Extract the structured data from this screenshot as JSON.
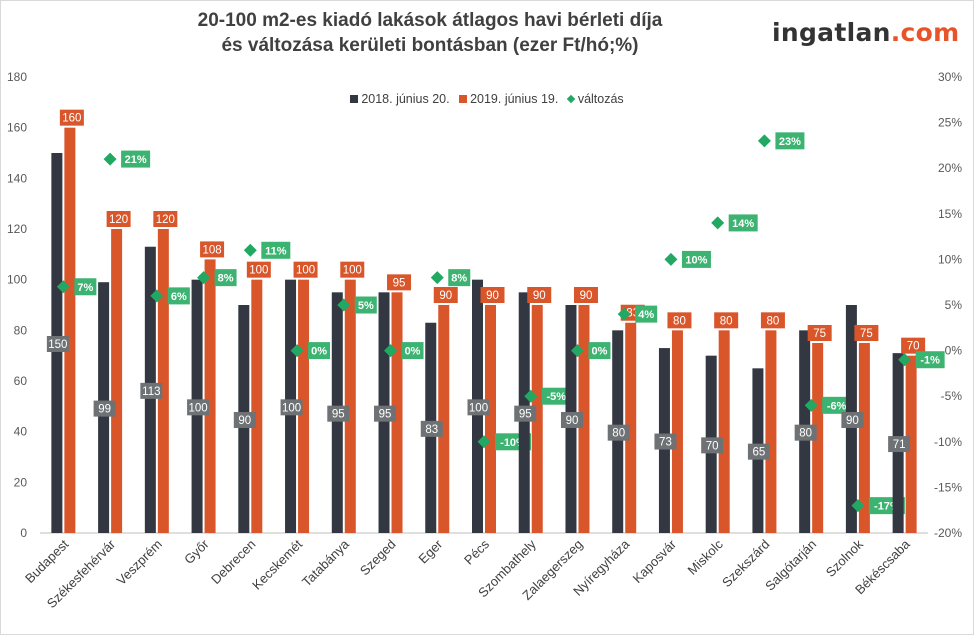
{
  "header": {
    "title_line1": "20-100 m2-es kiadó lakások átlagos havi bérleti díja",
    "title_line2": "és változása kerületi bontásban (ezer Ft/hó;%)",
    "logo_main": "ingatlan",
    "logo_suffix": ".com"
  },
  "colors": {
    "series_2018": "#323741",
    "series_2019": "#d9562b",
    "change": "#22a863",
    "label_2018_bg": "#6e7275",
    "change_label_bg": "#3cb371"
  },
  "chart_data": {
    "type": "bar",
    "title": "20-100 m2-es kiadó lakások átlagos havi bérleti díja és változása kerületi bontásban (ezer Ft/hó;%)",
    "categories": [
      "Budapest",
      "Székesfehérvár",
      "Veszprém",
      "Győr",
      "Debrecen",
      "Kecskemét",
      "Tatabánya",
      "Szeged",
      "Eger",
      "Pécs",
      "Szombathely",
      "Zalaegerszeg",
      "Nyíregyháza",
      "Kaposvár",
      "Miskolc",
      "Szekszárd",
      "Salgótarján",
      "Szolnok",
      "Békéscsaba"
    ],
    "series": [
      {
        "name": "2018. június 20.",
        "axis": "left",
        "values": [
          150,
          99,
          113,
          100,
          90,
          100,
          95,
          95,
          83,
          100,
          95,
          90,
          80,
          73,
          70,
          65,
          80,
          90,
          71
        ]
      },
      {
        "name": "2019. június 19.",
        "axis": "left",
        "values": [
          160,
          120,
          120,
          108,
          100,
          100,
          100,
          95,
          90,
          90,
          90,
          90,
          83,
          80,
          80,
          80,
          75,
          75,
          70
        ]
      },
      {
        "name": "változás",
        "axis": "right",
        "type": "scatter",
        "values": [
          7,
          21,
          6,
          8,
          11,
          0,
          5,
          0,
          8,
          -10,
          -5,
          0,
          4,
          10,
          14,
          23,
          -6,
          -17,
          -1
        ],
        "unit": "%"
      }
    ],
    "ylim_left": [
      0,
      180
    ],
    "left_ticks": [
      "0",
      "20",
      "40",
      "60",
      "80",
      "100",
      "120",
      "140",
      "160",
      "180"
    ],
    "ylim_right": [
      -20,
      30
    ],
    "right_ticks": [
      "-20%",
      "-15%",
      "-10%",
      "-5%",
      "0%",
      "5%",
      "10%",
      "15%",
      "20%",
      "25%",
      "30%"
    ],
    "grid": false,
    "legend_position": "top"
  }
}
